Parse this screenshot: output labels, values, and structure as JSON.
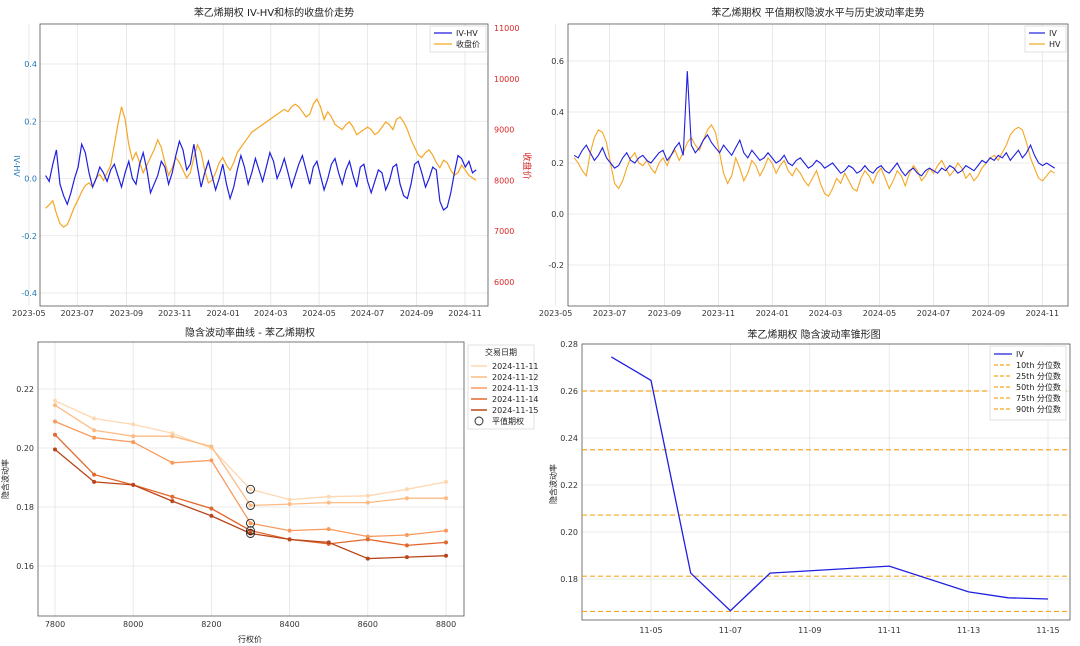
{
  "chart_data": [
    {
      "id": "c1",
      "type": "line",
      "title": "苯乙烯期权 IV-HV和标的收盘价走势",
      "ylabel_left": "IV-HV",
      "ylabel_right": "收盘价",
      "left_ticks": [
        "0.4",
        "0.2",
        "0.0",
        "-0.2",
        "-0.4"
      ],
      "left_ylim": [
        -0.4,
        0.4
      ],
      "right_ticks": [
        "11000",
        "10000",
        "9000",
        "8000",
        "7000",
        "6000"
      ],
      "right_ylim": [
        6000,
        11000
      ],
      "xlim": [
        "2023-05-15",
        "2024-11-30"
      ],
      "xticks": [
        "2023-05",
        "2023-07",
        "2023-09",
        "2023-11",
        "2024-01",
        "2024-03",
        "2024-05",
        "2024-07",
        "2024-09",
        "2024-11"
      ],
      "legend": [
        "IV-HV",
        "收盘价"
      ],
      "legend_position": "top-right",
      "grid": true,
      "series": [
        {
          "name": "IV-HV",
          "color": "#1f1fe0",
          "axis": "left",
          "start": "2023-05-22",
          "end": "2024-11-15",
          "values": [
            0.01,
            -0.01,
            0.05,
            0.1,
            -0.02,
            -0.06,
            -0.09,
            -0.05,
            0.0,
            0.04,
            0.12,
            0.09,
            0.02,
            -0.03,
            0.0,
            0.04,
            0.02,
            -0.01,
            0.03,
            0.05,
            0.01,
            -0.03,
            0.02,
            0.06,
            0.0,
            -0.02,
            0.05,
            0.09,
            0.03,
            -0.05,
            -0.02,
            0.01,
            0.06,
            0.04,
            -0.02,
            0.02,
            0.08,
            0.13,
            0.1,
            0.03,
            0.05,
            0.12,
            0.04,
            -0.03,
            0.02,
            0.06,
            0.01,
            -0.04,
            0.0,
            0.05,
            -0.02,
            -0.07,
            -0.03,
            0.03,
            0.08,
            0.04,
            -0.02,
            0.02,
            0.07,
            0.03,
            -0.01,
            0.04,
            0.09,
            0.06,
            0.0,
            0.03,
            0.07,
            0.02,
            -0.03,
            0.01,
            0.05,
            0.08,
            0.03,
            -0.02,
            0.04,
            0.06,
            0.01,
            -0.04,
            0.0,
            0.05,
            0.07,
            0.02,
            -0.02,
            0.03,
            0.06,
            0.01,
            -0.03,
            0.04,
            0.05,
            -0.01,
            -0.05,
            -0.01,
            0.03,
            0.02,
            -0.04,
            -0.01,
            0.04,
            0.05,
            -0.02,
            -0.06,
            -0.07,
            -0.02,
            0.05,
            0.06,
            0.02,
            -0.03,
            0.0,
            0.04,
            0.03,
            -0.08,
            -0.11,
            -0.1,
            -0.05,
            0.02,
            0.08,
            0.07,
            0.04,
            0.06,
            0.02,
            0.03
          ]
        },
        {
          "name": "收盘价",
          "color": "#f5a623",
          "axis": "right",
          "start": "2023-05-22",
          "end": "2024-11-15",
          "values": [
            7450,
            7520,
            7600,
            7350,
            7150,
            7080,
            7130,
            7300,
            7480,
            7620,
            7780,
            7900,
            7950,
            7870,
            8050,
            8120,
            8000,
            8150,
            8300,
            8700,
            9100,
            9450,
            9200,
            8700,
            8400,
            8550,
            8350,
            8150,
            8300,
            8450,
            8600,
            8800,
            8650,
            8350,
            8100,
            8250,
            8450,
            8350,
            8200,
            8050,
            8150,
            8450,
            8700,
            8550,
            8200,
            7950,
            8000,
            8150,
            8350,
            8450,
            8300,
            8200,
            8350,
            8550,
            8650,
            8750,
            8850,
            8950,
            9000,
            9050,
            9100,
            9150,
            9200,
            9250,
            9300,
            9350,
            9400,
            9350,
            9450,
            9500,
            9450,
            9350,
            9250,
            9300,
            9500,
            9600,
            9450,
            9200,
            9350,
            9250,
            9100,
            9050,
            9000,
            9100,
            9150,
            9050,
            8900,
            8950,
            9000,
            9050,
            9000,
            8900,
            8950,
            9050,
            9150,
            9100,
            9000,
            9200,
            9250,
            9150,
            9000,
            8800,
            8650,
            8500,
            8450,
            8550,
            8600,
            8500,
            8350,
            8250,
            8400,
            8350,
            8200,
            8100,
            8150,
            8300,
            8200,
            8100,
            8050,
            8000
          ]
        }
      ]
    },
    {
      "id": "c2",
      "type": "line",
      "title": "苯乙烯期权 平值期权隐波水平与历史波动率走势",
      "left_ticks": [
        "0.6",
        "0.4",
        "0.2",
        "0.0",
        "-0.2"
      ],
      "ylim": [
        -0.32,
        0.75
      ],
      "xlim": [
        "2023-05-15",
        "2024-11-30"
      ],
      "xticks": [
        "2023-05",
        "2023-07",
        "2023-09",
        "2023-11",
        "2024-01",
        "2024-03",
        "2024-05",
        "2024-07",
        "2024-09",
        "2024-11"
      ],
      "legend": [
        "IV",
        "HV"
      ],
      "legend_position": "top-right",
      "grid": true,
      "series": [
        {
          "name": "IV",
          "color": "#1f1fe0",
          "start": "2023-05-22",
          "end": "2024-11-15",
          "values": [
            0.23,
            0.22,
            0.25,
            0.27,
            0.24,
            0.21,
            0.23,
            0.26,
            0.22,
            0.2,
            0.18,
            0.19,
            0.22,
            0.24,
            0.21,
            0.2,
            0.22,
            0.23,
            0.21,
            0.2,
            0.22,
            0.24,
            0.25,
            0.21,
            0.23,
            0.26,
            0.28,
            0.23,
            0.56,
            0.27,
            0.24,
            0.26,
            0.29,
            0.31,
            0.28,
            0.26,
            0.24,
            0.27,
            0.25,
            0.23,
            0.26,
            0.29,
            0.24,
            0.22,
            0.25,
            0.23,
            0.21,
            0.22,
            0.24,
            0.22,
            0.2,
            0.21,
            0.23,
            0.2,
            0.19,
            0.21,
            0.22,
            0.2,
            0.18,
            0.19,
            0.21,
            0.2,
            0.18,
            0.19,
            0.2,
            0.18,
            0.16,
            0.17,
            0.19,
            0.18,
            0.16,
            0.17,
            0.19,
            0.17,
            0.16,
            0.18,
            0.19,
            0.17,
            0.16,
            0.18,
            0.2,
            0.17,
            0.15,
            0.17,
            0.18,
            0.16,
            0.15,
            0.17,
            0.18,
            0.17,
            0.16,
            0.18,
            0.17,
            0.19,
            0.18,
            0.16,
            0.17,
            0.19,
            0.18,
            0.17,
            0.19,
            0.21,
            0.2,
            0.22,
            0.21,
            0.23,
            0.22,
            0.24,
            0.21,
            0.23,
            0.25,
            0.22,
            0.24,
            0.27,
            0.23,
            0.2,
            0.19,
            0.2,
            0.19,
            0.18
          ]
        },
        {
          "name": "HV",
          "color": "#f5a623",
          "start": "2023-05-22",
          "end": "2024-11-15",
          "values": [
            0.22,
            0.2,
            0.17,
            0.15,
            0.24,
            0.3,
            0.33,
            0.32,
            0.28,
            0.2,
            0.12,
            0.1,
            0.13,
            0.18,
            0.22,
            0.24,
            0.2,
            0.19,
            0.21,
            0.18,
            0.16,
            0.2,
            0.22,
            0.19,
            0.23,
            0.25,
            0.21,
            0.24,
            0.28,
            0.3,
            0.27,
            0.25,
            0.29,
            0.33,
            0.35,
            0.32,
            0.24,
            0.16,
            0.12,
            0.15,
            0.22,
            0.18,
            0.13,
            0.16,
            0.21,
            0.19,
            0.15,
            0.18,
            0.22,
            0.2,
            0.16,
            0.19,
            0.21,
            0.17,
            0.15,
            0.18,
            0.16,
            0.13,
            0.11,
            0.14,
            0.17,
            0.12,
            0.08,
            0.07,
            0.1,
            0.14,
            0.12,
            0.16,
            0.13,
            0.1,
            0.09,
            0.14,
            0.17,
            0.15,
            0.12,
            0.16,
            0.18,
            0.14,
            0.1,
            0.13,
            0.17,
            0.15,
            0.11,
            0.16,
            0.19,
            0.17,
            0.13,
            0.15,
            0.18,
            0.16,
            0.19,
            0.21,
            0.18,
            0.15,
            0.17,
            0.2,
            0.18,
            0.14,
            0.16,
            0.13,
            0.15,
            0.18,
            0.2,
            0.22,
            0.23,
            0.21,
            0.24,
            0.27,
            0.31,
            0.33,
            0.34,
            0.33,
            0.28,
            0.22,
            0.18,
            0.14,
            0.13,
            0.15,
            0.17,
            0.16
          ]
        }
      ]
    },
    {
      "id": "c3",
      "type": "line",
      "title": "隐含波动率曲线 - 苯乙烯期权",
      "xlabel": "行权价",
      "ylabel": "隐含波动率",
      "xlim": [
        7770,
        8830
      ],
      "ylim": [
        0.143,
        0.228
      ],
      "xticks": [
        7800,
        8000,
        8200,
        8400,
        8600,
        8800
      ],
      "yticks": [
        0.16,
        0.18,
        0.2,
        0.22
      ],
      "ytick_labels": [
        "0.16",
        "0.18",
        "0.20",
        "0.22"
      ],
      "legend_title": "交易日期",
      "legend_position": "top-right",
      "legend": [
        "2024-11-11",
        "2024-11-12",
        "2024-11-13",
        "2024-11-14",
        "2024-11-15",
        "平值期权"
      ],
      "grid": true,
      "x": [
        7800,
        7900,
        8000,
        8100,
        8200,
        8300,
        8400,
        8500,
        8600,
        8700,
        8800
      ],
      "atm_strike": 8300,
      "series": [
        {
          "name": "2024-11-11",
          "color": "#fdd8b0",
          "values": [
            0.216,
            0.21,
            0.208,
            0.205,
            0.2,
            0.186,
            0.1825,
            0.1835,
            0.1838,
            0.186,
            0.1885
          ]
        },
        {
          "name": "2024-11-12",
          "color": "#fdbb84",
          "values": [
            0.2145,
            0.206,
            0.204,
            0.204,
            0.2005,
            0.1805,
            0.181,
            0.1815,
            0.1815,
            0.183,
            0.183
          ]
        },
        {
          "name": "2024-11-13",
          "color": "#f99a5c",
          "values": [
            0.209,
            0.2035,
            0.202,
            0.195,
            0.1958,
            0.1745,
            0.172,
            0.1725,
            0.17,
            0.1705,
            0.172
          ]
        },
        {
          "name": "2024-11-14",
          "color": "#e2672a",
          "values": [
            0.2045,
            0.191,
            0.1875,
            0.1835,
            0.1795,
            0.172,
            0.169,
            0.1675,
            0.169,
            0.167,
            0.168
          ]
        },
        {
          "name": "2024-11-15",
          "color": "#b8461a",
          "values": [
            0.1995,
            0.1885,
            0.1875,
            0.182,
            0.177,
            0.171,
            0.169,
            0.168,
            0.1625,
            0.163,
            0.1635
          ]
        }
      ],
      "atm_label": "平值期权"
    },
    {
      "id": "c4",
      "type": "line",
      "title": "苯乙烯期权 隐含波动率锥形图",
      "ylabel": "隐含波动率",
      "xlim": [
        "2024-11-03",
        "2024-11-16"
      ],
      "ylim": [
        0.159,
        0.28
      ],
      "yticks": [
        0.18,
        0.2,
        0.22,
        0.24,
        0.26,
        0.28
      ],
      "ytick_labels": [
        "0.18",
        "0.20",
        "0.22",
        "0.24",
        "0.26",
        "0.28"
      ],
      "xticks": [
        "11-05",
        "11-07",
        "11-09",
        "11-11",
        "11-13",
        "11-15"
      ],
      "legend_position": "top-right",
      "legend": [
        "IV",
        "10th 分位数",
        "25th 分位数",
        "50th 分位数",
        "75th 分位数",
        "90th 分位数"
      ],
      "grid": true,
      "series": [
        {
          "name": "IV",
          "color": "#1f1fe0",
          "points": [
            [
              "2024-11-04",
              0.2745
            ],
            [
              "2024-11-05",
              0.2645
            ],
            [
              "2024-11-06",
              0.1825
            ],
            [
              "2024-11-07",
              0.1665
            ],
            [
              "2024-11-08",
              0.1825
            ],
            [
              "2024-11-11",
              0.1855
            ],
            [
              "2024-11-13",
              0.1745
            ],
            [
              "2024-11-14",
              0.172
            ],
            [
              "2024-11-15",
              0.1715
            ]
          ]
        }
      ],
      "percentile_color": "#f5a623",
      "percentiles": [
        {
          "name": "10th 分位数",
          "value": 0.1662
        },
        {
          "name": "25th 分位数",
          "value": 0.1812
        },
        {
          "name": "50th 分位数",
          "value": 0.2072
        },
        {
          "name": "75th 分位数",
          "value": 0.235
        },
        {
          "name": "90th 分位数",
          "value": 0.26
        }
      ]
    }
  ]
}
